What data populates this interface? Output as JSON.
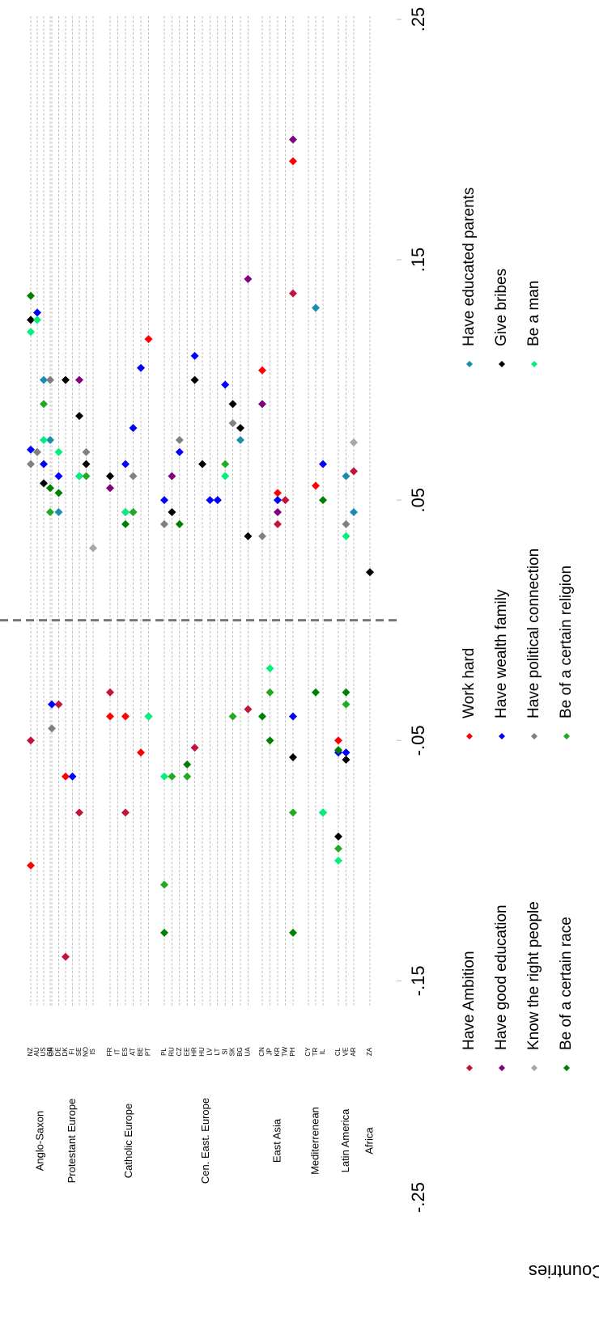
{
  "chart_data": {
    "type": "scatter",
    "y_axis_title": "Countries",
    "categories": [
      "NZ",
      "AU",
      "US",
      "GB",
      "CH",
      "DE",
      "DK",
      "FI",
      "SE",
      "NO",
      "IS",
      "FR",
      "IT",
      "ES",
      "AT",
      "BE",
      "PT",
      "PL",
      "RU",
      "CZ",
      "EE",
      "HR",
      "HU",
      "LV",
      "LT",
      "SI",
      "SK",
      "BG",
      "UA",
      "CN",
      "JP",
      "KR",
      "TW",
      "PH",
      "CY",
      "TR",
      "IL",
      "CL",
      "VE",
      "AR",
      "ZA"
    ],
    "groups": [
      {
        "name": "Anglo-Saxon",
        "size": 4
      },
      {
        "name": "Protestant Europe",
        "size": 7
      },
      {
        "name": "Catholic Europe",
        "size": 6
      },
      {
        "name": "Cen. East. Europe",
        "size": 12
      },
      {
        "name": "East Asia",
        "size": 5
      },
      {
        "name": "Mediterrenean",
        "size": 3
      },
      {
        "name": "Latin America",
        "size": 3
      },
      {
        "name": "Africa",
        "size": 1
      }
    ],
    "group_panel_tick": {
      "value": -0.25,
      "label": "-.25"
    },
    "ylim": [
      -0.16,
      0.25
    ],
    "yticks": [
      {
        "value": -0.15,
        "label": "-.15"
      },
      {
        "value": -0.05,
        "label": "-.05"
      },
      {
        "value": 0.05,
        "label": ".05"
      },
      {
        "value": 0.15,
        "label": ".15"
      },
      {
        "value": 0.25,
        "label": ".25"
      }
    ],
    "reference_line": 0,
    "grid": true,
    "series": [
      {
        "name": "Have Ambition",
        "color": "#c0143c",
        "values": [
          -0.05,
          null,
          null,
          null,
          null,
          -0.035,
          -0.14,
          null,
          -0.08,
          null,
          null,
          -0.03,
          null,
          -0.08,
          null,
          null,
          null,
          null,
          null,
          null,
          null,
          -0.053,
          null,
          null,
          null,
          null,
          null,
          null,
          -0.037,
          null,
          null,
          0.04,
          0.05,
          0.136,
          null,
          null,
          null,
          null,
          null,
          0.062,
          null
        ]
      },
      {
        "name": "Work hard",
        "color": "#ff0000",
        "values": [
          -0.102,
          null,
          null,
          null,
          null,
          null,
          -0.065,
          null,
          null,
          null,
          null,
          -0.04,
          null,
          -0.04,
          null,
          -0.055,
          0.117,
          null,
          null,
          null,
          null,
          null,
          null,
          null,
          null,
          null,
          null,
          null,
          null,
          0.104,
          null,
          0.053,
          null,
          0.191,
          null,
          0.056,
          null,
          -0.05,
          null,
          null,
          null
        ]
      },
      {
        "name": "Have educated parents",
        "color": "#1a8cb0",
        "values": [
          null,
          null,
          0.1,
          0.075,
          null,
          0.045,
          null,
          null,
          0.06,
          null,
          null,
          null,
          null,
          null,
          0.045,
          null,
          -0.04,
          null,
          null,
          null,
          null,
          null,
          null,
          null,
          null,
          null,
          null,
          0.075,
          null,
          null,
          null,
          0.05,
          null,
          null,
          null,
          0.13,
          null,
          null,
          0.06,
          0.045,
          null
        ]
      },
      {
        "name": "Have good education",
        "color": "#800080",
        "values": [
          null,
          null,
          null,
          null,
          null,
          null,
          null,
          null,
          0.1,
          null,
          null,
          0.055,
          null,
          0.045,
          null,
          null,
          null,
          null,
          0.06,
          null,
          null,
          null,
          null,
          null,
          0.05,
          null,
          null,
          null,
          0.142,
          0.09,
          null,
          0.045,
          null,
          0.2,
          null,
          null,
          null,
          null,
          null,
          null,
          null
        ]
      },
      {
        "name": "Have wealth family",
        "color": "#0000ff",
        "values": [
          0.071,
          0.128,
          0.065,
          null,
          -0.035,
          0.06,
          null,
          -0.065,
          null,
          null,
          null,
          null,
          null,
          0.065,
          0.08,
          0.105,
          null,
          0.05,
          null,
          0.07,
          null,
          0.11,
          null,
          0.05,
          0.05,
          0.098,
          null,
          null,
          null,
          null,
          null,
          0.05,
          null,
          -0.04,
          null,
          null,
          0.065,
          -0.055,
          -0.055,
          null,
          null
        ]
      },
      {
        "name": "Give bribes",
        "color": "#000000",
        "values": [
          0.125,
          null,
          0.057,
          null,
          null,
          null,
          0.1,
          null,
          0.085,
          0.065,
          null,
          0.06,
          null,
          null,
          null,
          null,
          null,
          null,
          0.045,
          null,
          null,
          0.1,
          0.065,
          null,
          null,
          null,
          0.09,
          0.08,
          0.035,
          null,
          null,
          null,
          null,
          -0.057,
          null,
          null,
          -0.08,
          -0.09,
          -0.058,
          null,
          0.02
        ]
      },
      {
        "name": "Know the right people",
        "color": "#a8a8a8",
        "values": [
          null,
          0.07,
          null,
          null,
          null,
          null,
          null,
          null,
          null,
          null,
          0.03,
          null,
          null,
          null,
          null,
          null,
          null,
          null,
          null,
          null,
          null,
          null,
          null,
          null,
          null,
          null,
          null,
          null,
          null,
          null,
          null,
          null,
          null,
          null,
          null,
          null,
          null,
          null,
          null,
          0.074,
          null
        ]
      },
      {
        "name": "Have political connection",
        "color": "#808080",
        "values": [
          0.065,
          0.07,
          null,
          0.1,
          -0.045,
          null,
          null,
          null,
          null,
          0.07,
          null,
          null,
          null,
          null,
          0.06,
          null,
          null,
          0.04,
          null,
          0.075,
          null,
          null,
          null,
          null,
          null,
          null,
          0.082,
          null,
          null,
          0.035,
          null,
          null,
          null,
          null,
          null,
          null,
          null,
          null,
          0.04,
          null,
          null
        ]
      },
      {
        "name": "Be a man",
        "color": "#00f07a",
        "values": [
          0.12,
          0.125,
          0.075,
          null,
          null,
          0.07,
          null,
          null,
          0.06,
          null,
          null,
          null,
          null,
          0.045,
          null,
          null,
          -0.04,
          -0.065,
          null,
          null,
          null,
          null,
          null,
          null,
          null,
          0.06,
          null,
          null,
          null,
          null,
          -0.02,
          null,
          null,
          null,
          null,
          null,
          -0.08,
          -0.1,
          0.035,
          null,
          null
        ]
      },
      {
        "name": "Be of a certain race",
        "color": "#008000",
        "values": [
          0.135,
          null,
          null,
          0.055,
          null,
          0.053,
          null,
          null,
          null,
          null,
          null,
          null,
          null,
          0.04,
          null,
          null,
          null,
          -0.13,
          null,
          0.04,
          -0.06,
          null,
          null,
          null,
          null,
          null,
          null,
          null,
          null,
          -0.04,
          -0.05,
          null,
          null,
          -0.13,
          null,
          -0.03,
          0.05,
          -0.054,
          -0.03,
          null,
          null
        ]
      },
      {
        "name": "Be of a certain religion",
        "color": "#22aa22",
        "values": [
          null,
          null,
          0.09,
          0.045,
          null,
          null,
          null,
          null,
          null,
          0.06,
          null,
          null,
          null,
          null,
          0.045,
          null,
          null,
          -0.11,
          -0.065,
          null,
          -0.065,
          null,
          null,
          null,
          null,
          0.065,
          -0.04,
          null,
          null,
          null,
          -0.03,
          null,
          null,
          -0.08,
          null,
          null,
          null,
          -0.095,
          -0.035,
          null,
          null
        ]
      }
    ]
  }
}
